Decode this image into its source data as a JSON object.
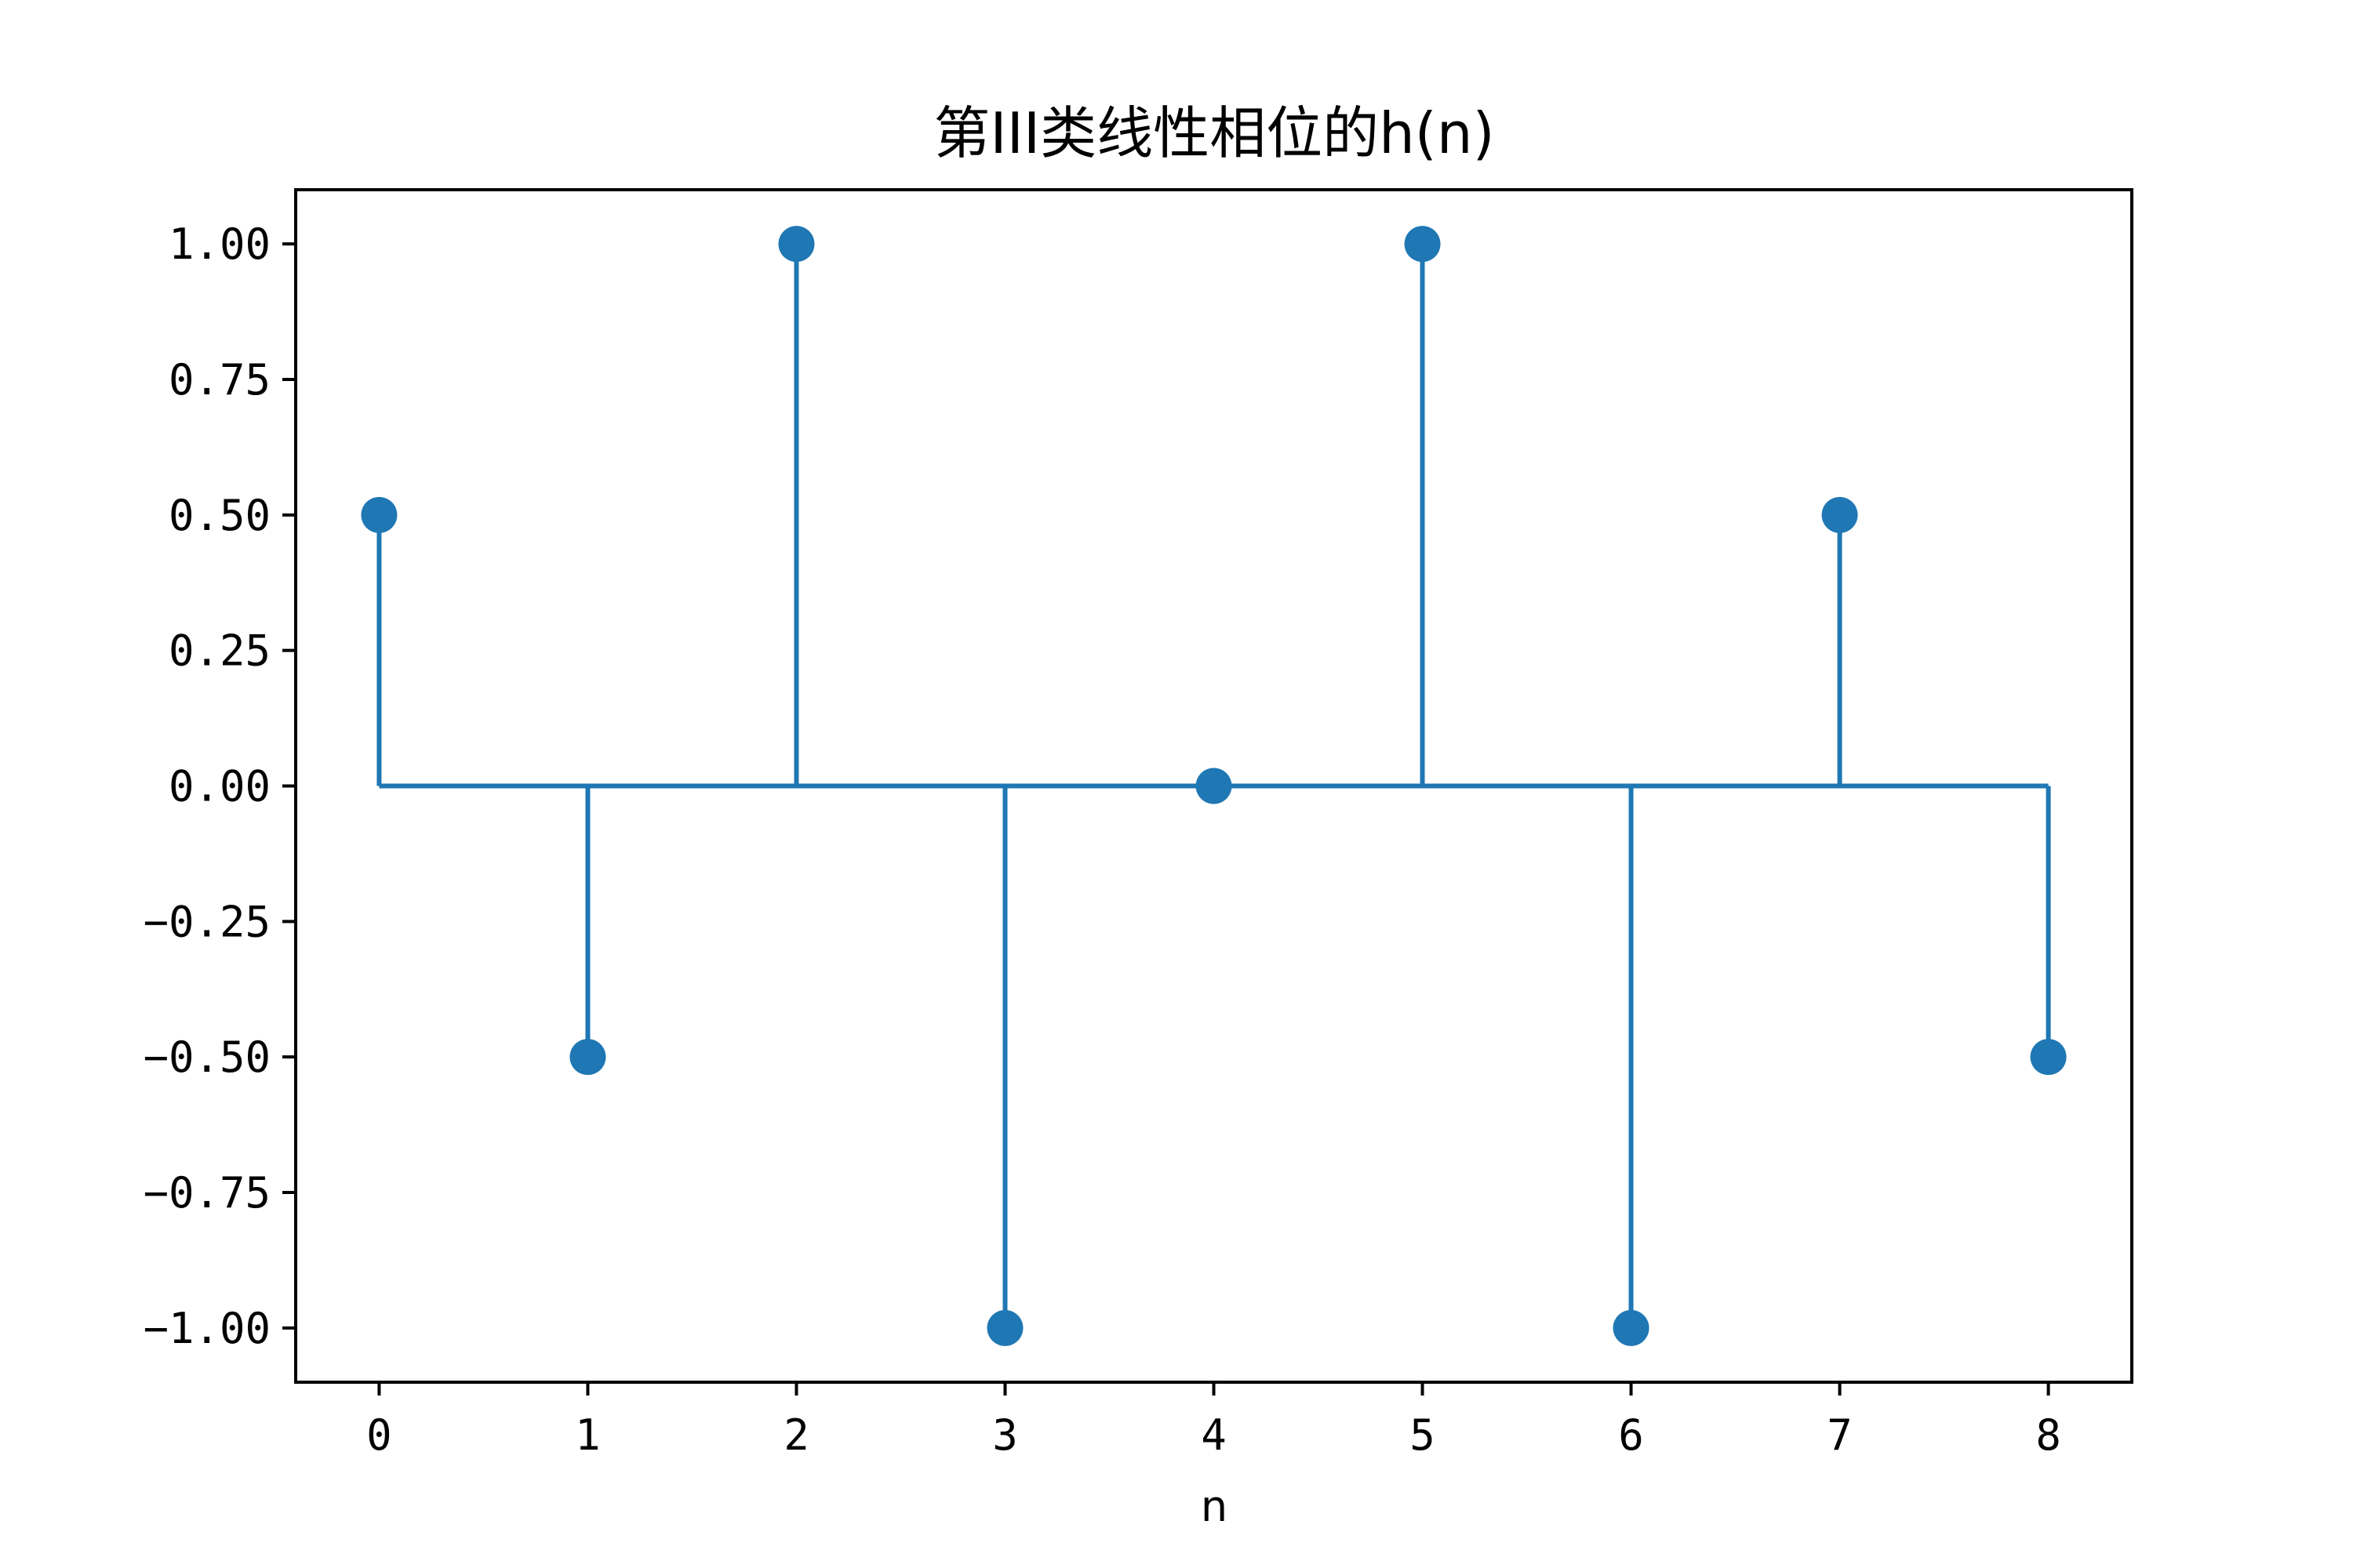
{
  "chart_data": {
    "type": "stem",
    "title": "第III类线性相位的h(n)",
    "xlabel": "n",
    "ylabel": "",
    "x": [
      0,
      1,
      2,
      3,
      4,
      5,
      6,
      7,
      8
    ],
    "y": [
      0.5,
      -0.5,
      1.0,
      -1.0,
      0.0,
      1.0,
      -1.0,
      0.5,
      -0.5
    ],
    "baseline": 0,
    "xlim": [
      -0.4,
      8.4
    ],
    "ylim": [
      -1.1,
      1.1
    ],
    "xticks": [
      0,
      1,
      2,
      3,
      4,
      5,
      6,
      7,
      8
    ],
    "xtick_labels": [
      "0",
      "1",
      "2",
      "3",
      "4",
      "5",
      "6",
      "7",
      "8"
    ],
    "yticks": [
      1.0,
      0.75,
      0.5,
      0.25,
      0.0,
      -0.25,
      -0.5,
      -0.75,
      -1.0
    ],
    "ytick_labels": [
      "1.00",
      "0.75",
      "0.50",
      "0.25",
      "0.00",
      "−0.25",
      "−0.50",
      "−0.75",
      "−1.00"
    ],
    "grid": false,
    "legend": "none",
    "colors": {
      "series": "#1f77b4",
      "axes": "#000000",
      "background": "#ffffff"
    }
  }
}
